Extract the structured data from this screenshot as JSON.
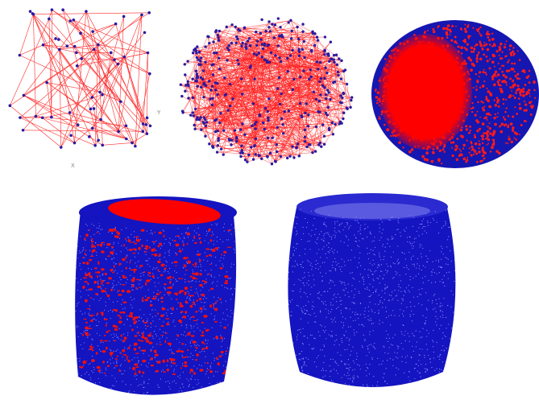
{
  "graph_axes": {
    "x_label": "X",
    "y_label": "Y"
  }
}
